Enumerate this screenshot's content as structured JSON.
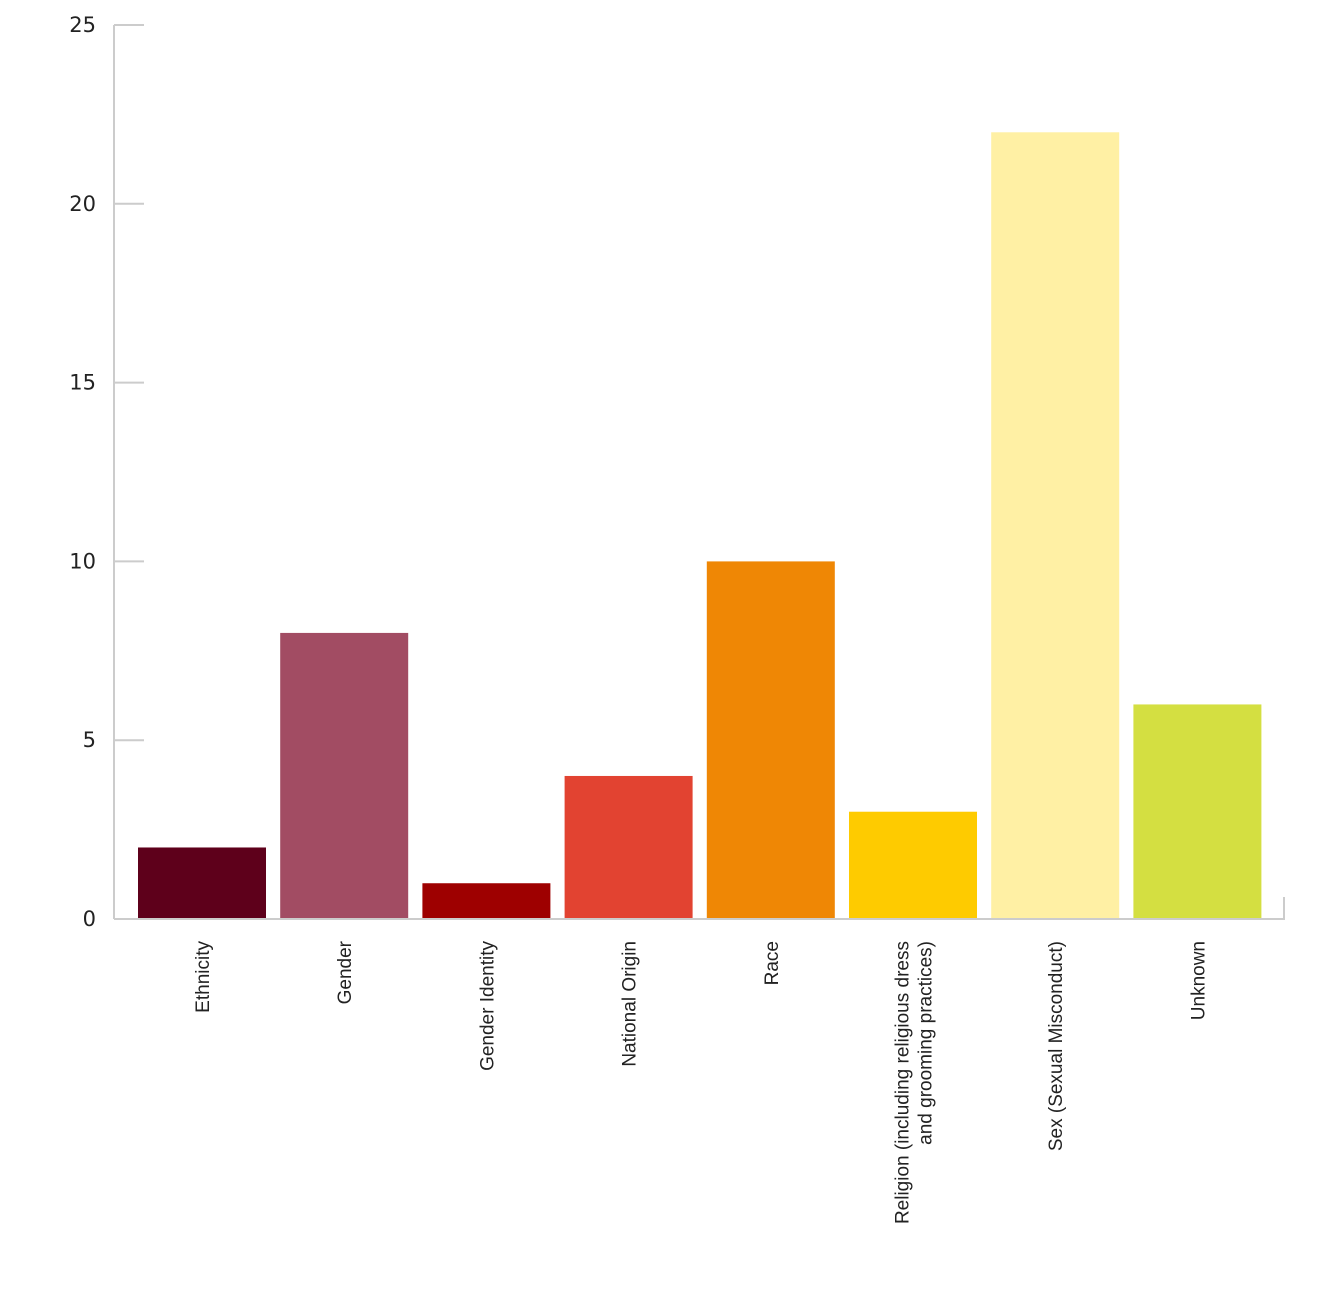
{
  "chart_data": {
    "type": "bar",
    "title": "",
    "xlabel": "",
    "ylabel": "",
    "ylim": [
      0,
      25
    ],
    "yticks": [
      "0",
      "5",
      "10",
      "15",
      "20",
      "25"
    ],
    "categories": [
      [
        "Ethnicity"
      ],
      [
        "Gender"
      ],
      [
        "Gender Identity"
      ],
      [
        "National Origin"
      ],
      [
        "Race"
      ],
      [
        "Religion (including religious dress",
        "and grooming practices)"
      ],
      [
        "Sex (Sexual Misconduct)"
      ],
      [
        "Unknown"
      ]
    ],
    "values": [
      2,
      8,
      1,
      4,
      10,
      3,
      22,
      6
    ],
    "colors": [
      "#5e001b",
      "#a24c63",
      "#9e0000",
      "#e24331",
      "#ef8705",
      "#fecb00",
      "#fff0a4",
      "#d4df41"
    ],
    "grid": false,
    "legend": "none"
  }
}
